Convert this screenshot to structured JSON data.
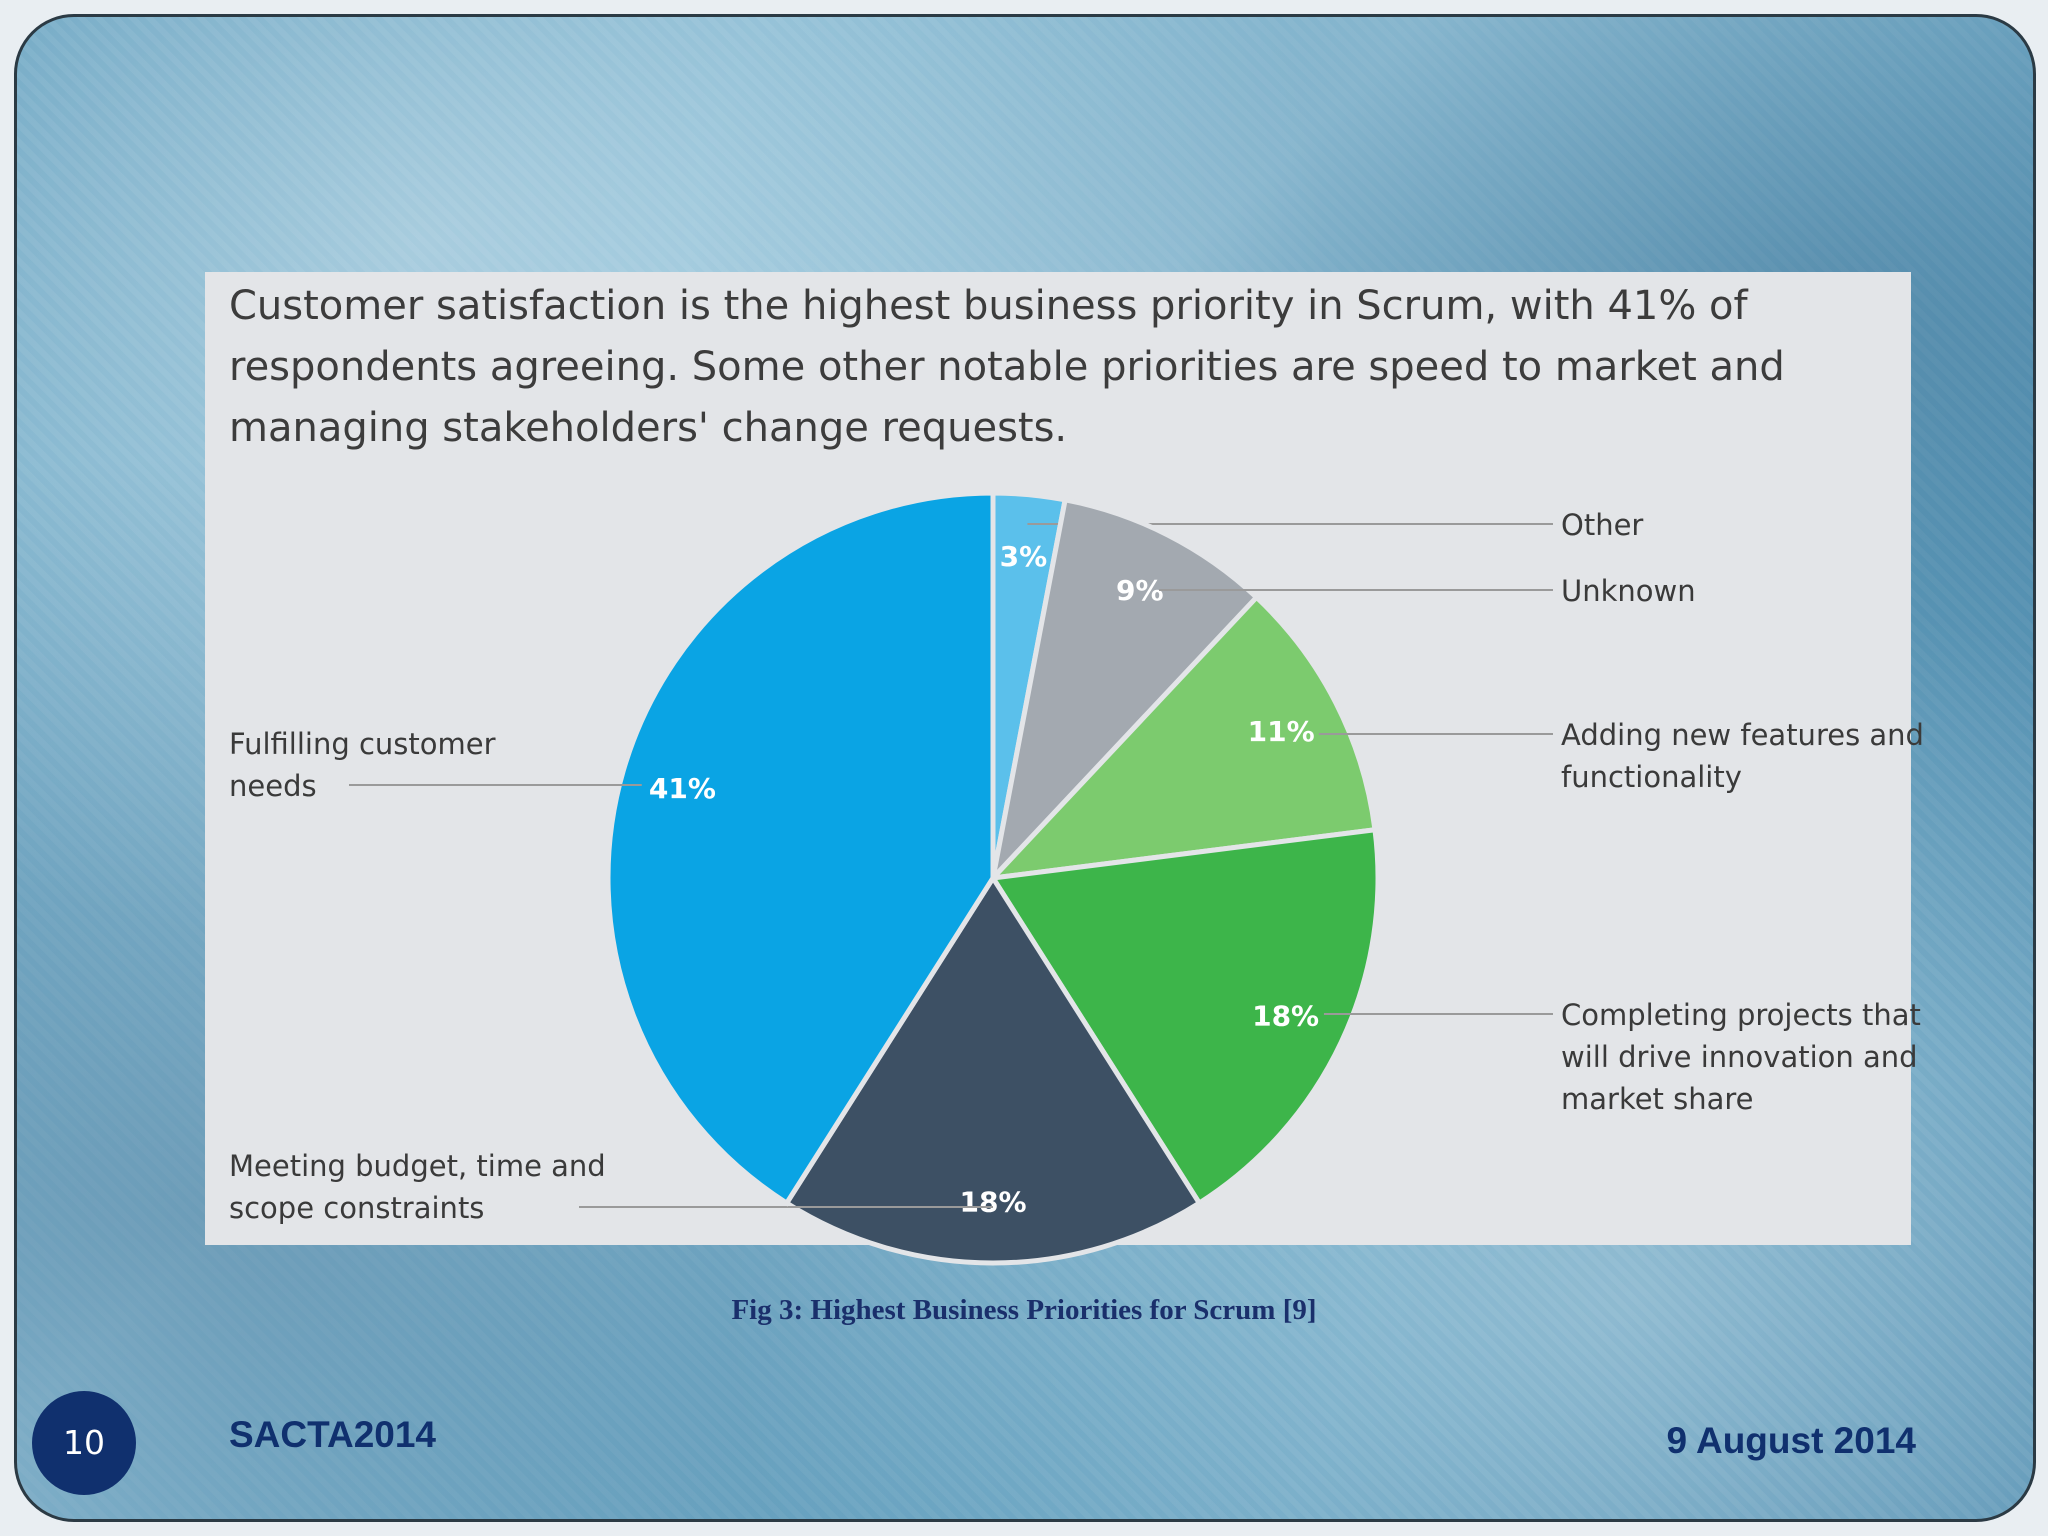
{
  "slide": {
    "caption": "Fig 3: Highest Business Priorities for Scrum [9]",
    "slide_number": "10",
    "organization": "SACTA2014",
    "date": "9 August 2014"
  },
  "chart_data": {
    "type": "pie",
    "title": "Customer satisfaction is the highest business priority in Scrum, with 41% of respondents agreeing. Some other notable priorities are speed to market and managing stakeholders' change requests.",
    "categories": [
      "Other",
      "Unknown",
      "Adding new features and functionality",
      "Completing projects that will drive innovation and market share",
      "Meeting budget, time and scope constraints",
      "Fulfilling customer needs"
    ],
    "values": [
      3,
      9,
      11,
      18,
      18,
      41
    ],
    "value_labels": [
      "3%",
      "9%",
      "11%",
      "18%",
      "18%",
      "41%"
    ],
    "colors": [
      "#5bc0eb",
      "#a3a9b0",
      "#7ccb6e",
      "#3db54a",
      "#3d5064",
      "#0aa4e4"
    ]
  }
}
